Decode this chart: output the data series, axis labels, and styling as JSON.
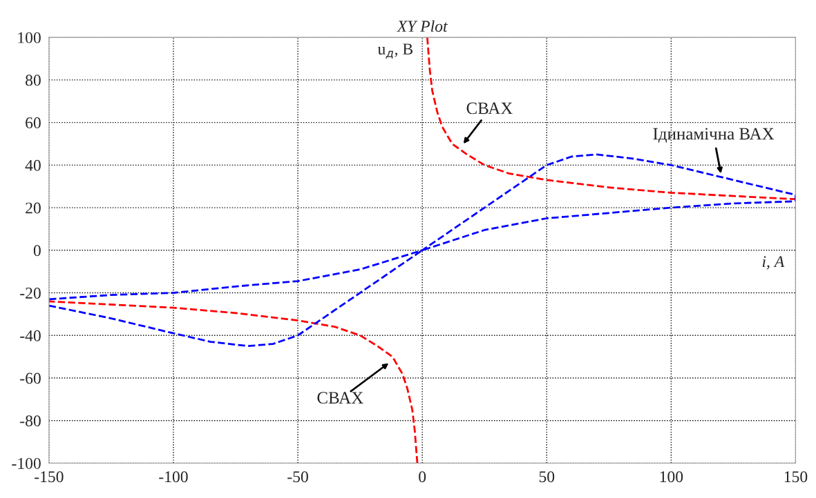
{
  "chart_data": {
    "type": "line",
    "title": "XY Plot",
    "xlabel": "i, А",
    "ylabel": "u$_{д}$, В",
    "xlim": [
      -150,
      150
    ],
    "ylim": [
      -100,
      100
    ],
    "xticks": [
      -150,
      -100,
      -50,
      0,
      50,
      100,
      150
    ],
    "yticks": [
      -100,
      -80,
      -60,
      -40,
      -20,
      0,
      20,
      40,
      60,
      80,
      100
    ],
    "grid": true,
    "line_style": "dashed",
    "marker": "none",
    "series": [
      {
        "color": "#ff0000",
        "x": [
          2,
          3,
          4,
          6,
          8,
          12,
          18,
          25,
          35,
          50,
          75,
          100,
          125,
          150
        ],
        "values": [
          100,
          85,
          75,
          65,
          58,
          50,
          45,
          40,
          36,
          33,
          29.5,
          27,
          25.5,
          24
        ]
      },
      {
        "color": "#ff0000",
        "x": [
          -2,
          -3,
          -4,
          -6,
          -8,
          -12,
          -18,
          -25,
          -35,
          -50,
          -75,
          -100,
          -125,
          -150
        ],
        "values": [
          -100,
          -85,
          -75,
          -65,
          -58,
          -50,
          -45,
          -40,
          -36,
          -33,
          -29.5,
          -27,
          -25.5,
          -24
        ]
      },
      {
        "color": "#0000ff",
        "x": [
          -150,
          -125,
          -100,
          -85,
          -70,
          -60,
          -50,
          -25,
          0,
          25,
          50,
          75,
          100,
          125,
          150,
          150,
          125,
          100,
          85,
          70,
          60,
          50,
          25,
          0,
          -25,
          -50,
          -75,
          -100,
          -125,
          -150
        ],
        "values": [
          -26,
          -32,
          -39,
          -43,
          -45,
          -44,
          -40,
          -20,
          0,
          9.5,
          15,
          17.5,
          20,
          22,
          23,
          26,
          33,
          40,
          43,
          45,
          44,
          40,
          20,
          0,
          -9,
          -14.5,
          -17,
          -20,
          -21,
          -23
        ]
      }
    ],
    "annotations": [
      "СВАХ",
      "Ідинамічна ВАХ",
      "СВАХ"
    ]
  }
}
